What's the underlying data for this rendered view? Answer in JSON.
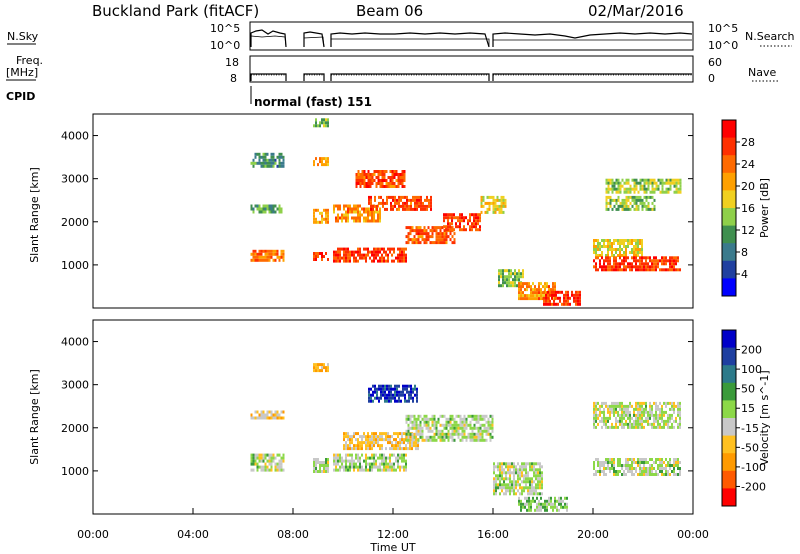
{
  "header": {
    "title": "Buckland Park (fitACF)",
    "beam": "Beam 06",
    "date": "02/Mar/2016"
  },
  "top_panels": {
    "nsky_label": "N.Sky",
    "nsky_ticks": [
      "10^5",
      "10^0"
    ],
    "nsearch_label": "N.Search",
    "nsearch_ticks": [
      "10^5",
      "10^0"
    ],
    "freq_label_1": "Freq.",
    "freq_label_2": "[MHz]",
    "freq_ticks": [
      "18",
      "8"
    ],
    "nave_label": "Nave",
    "nave_ticks": [
      "60",
      "0"
    ],
    "cpid_label": "CPID",
    "cpid_text": "normal (fast) 151"
  },
  "colors": {
    "power_scale": [
      "#0000ff",
      "#2040a0",
      "#3a7a8c",
      "#3f8f4f",
      "#8fd04a",
      "#f0d020",
      "#ffa000",
      "#ff6a00",
      "#ff3000",
      "#ff0000"
    ],
    "velocity_scale": [
      "#0000c8",
      "#1e3fa0",
      "#2c7a8a",
      "#3a9a3a",
      "#8cd848",
      "#c8c8c8",
      "#ffc020",
      "#ff9a00",
      "#ff5a00",
      "#ff0000"
    ]
  },
  "chart_data": [
    {
      "type": "heatmap",
      "name": "power",
      "ylabel": "Slant Range [km]",
      "xlabel": "Time UT",
      "x_range": [
        0,
        24
      ],
      "x_ticks": [
        "00:00",
        "04:00",
        "08:00",
        "12:00",
        "16:00",
        "20:00",
        "00:00"
      ],
      "ylim": [
        0,
        4500
      ],
      "y_ticks": [
        1000,
        2000,
        3000,
        4000
      ],
      "colorbar_label": "Power [dB]",
      "colorbar_ticks": [
        "4",
        "8",
        "12",
        "16",
        "20",
        "24",
        "28"
      ],
      "colorbar_range": [
        0,
        32
      ],
      "bands": [
        {
          "t": [
            6.3,
            7.6
          ],
          "r": [
            1100,
            1350
          ],
          "v": 24
        },
        {
          "t": [
            6.3,
            7.6
          ],
          "r": [
            2200,
            2400
          ],
          "v": 12
        },
        {
          "t": [
            6.3,
            7.6
          ],
          "r": [
            3300,
            3600
          ],
          "v": 10
        },
        {
          "t": [
            8.8,
            9.4
          ],
          "r": [
            1100,
            1300
          ],
          "v": 26
        },
        {
          "t": [
            8.8,
            9.4
          ],
          "r": [
            2000,
            2300
          ],
          "v": 20
        },
        {
          "t": [
            8.8,
            9.4
          ],
          "r": [
            3300,
            3500
          ],
          "v": 20
        },
        {
          "t": [
            8.8,
            9.4
          ],
          "r": [
            4200,
            4400
          ],
          "v": 14
        },
        {
          "t": [
            9.6,
            12.5
          ],
          "r": [
            1100,
            1400
          ],
          "v": 27
        },
        {
          "t": [
            9.6,
            11.5
          ],
          "r": [
            2000,
            2400
          ],
          "v": 22
        },
        {
          "t": [
            10.5,
            12.5
          ],
          "r": [
            2800,
            3200
          ],
          "v": 26
        },
        {
          "t": [
            11.0,
            13.5
          ],
          "r": [
            2300,
            2600
          ],
          "v": 26
        },
        {
          "t": [
            12.5,
            14.5
          ],
          "r": [
            1500,
            1900
          ],
          "v": 25
        },
        {
          "t": [
            14.0,
            15.5
          ],
          "r": [
            1800,
            2200
          ],
          "v": 27
        },
        {
          "t": [
            15.5,
            16.5
          ],
          "r": [
            2200,
            2600
          ],
          "v": 18
        },
        {
          "t": [
            16.2,
            17.2
          ],
          "r": [
            500,
            900
          ],
          "v": 14
        },
        {
          "t": [
            17.0,
            18.5
          ],
          "r": [
            200,
            600
          ],
          "v": 22
        },
        {
          "t": [
            18.0,
            19.5
          ],
          "r": [
            100,
            400
          ],
          "v": 28
        },
        {
          "t": [
            20.0,
            22.0
          ],
          "r": [
            1200,
            1600
          ],
          "v": 18
        },
        {
          "t": [
            20.5,
            22.5
          ],
          "r": [
            2300,
            2600
          ],
          "v": 14
        },
        {
          "t": [
            20.0,
            23.5
          ],
          "r": [
            900,
            1200
          ],
          "v": 27
        },
        {
          "t": [
            20.5,
            23.5
          ],
          "r": [
            2700,
            3000
          ],
          "v": 15
        }
      ]
    },
    {
      "type": "heatmap",
      "name": "velocity",
      "ylabel": "Slant Range [km]",
      "xlabel": "Time UT",
      "x_range": [
        0,
        24
      ],
      "x_ticks": [
        "00:00",
        "04:00",
        "08:00",
        "12:00",
        "16:00",
        "20:00",
        "00:00"
      ],
      "ylim": [
        0,
        4500
      ],
      "y_ticks": [
        1000,
        2000,
        3000,
        4000
      ],
      "colorbar_label": "Velocity [m s^-1]",
      "colorbar_ticks": [
        "200",
        "100",
        "50",
        "15",
        "-15",
        "-50",
        "-100",
        "-200"
      ],
      "colorbar_range": [
        -250,
        250
      ],
      "bands": [
        {
          "t": [
            6.3,
            7.6
          ],
          "r": [
            1000,
            1400
          ],
          "v": 0
        },
        {
          "t": [
            6.3,
            7.6
          ],
          "r": [
            2200,
            2400
          ],
          "v": -60
        },
        {
          "t": [
            8.8,
            9.4
          ],
          "r": [
            1000,
            1300
          ],
          "v": 0
        },
        {
          "t": [
            8.8,
            9.4
          ],
          "r": [
            3300,
            3500
          ],
          "v": -90
        },
        {
          "t": [
            9.6,
            12.5
          ],
          "r": [
            1000,
            1400
          ],
          "v": 0
        },
        {
          "t": [
            10.0,
            13.0
          ],
          "r": [
            1500,
            1900
          ],
          "v": -70
        },
        {
          "t": [
            11.0,
            13.0
          ],
          "r": [
            2600,
            3000
          ],
          "v": 180
        },
        {
          "t": [
            12.5,
            16.0
          ],
          "r": [
            1700,
            2300
          ],
          "v": 0
        },
        {
          "t": [
            16.0,
            18.0
          ],
          "r": [
            500,
            1200
          ],
          "v": 0
        },
        {
          "t": [
            17.0,
            19.0
          ],
          "r": [
            100,
            400
          ],
          "v": 30
        },
        {
          "t": [
            20.0,
            23.5
          ],
          "r": [
            900,
            1300
          ],
          "v": 0
        },
        {
          "t": [
            20.0,
            23.5
          ],
          "r": [
            2000,
            2600
          ],
          "v": -10
        }
      ]
    }
  ]
}
